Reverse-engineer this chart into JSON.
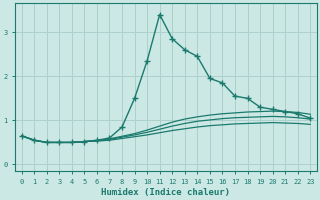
{
  "xlabel": "Humidex (Indice chaleur)",
  "background_color": "#cce8e4",
  "grid_color": "#aed0cc",
  "line_color": "#1a7a6e",
  "xlim": [
    -0.5,
    23.5
  ],
  "ylim": [
    -0.15,
    3.65
  ],
  "xticks": [
    0,
    1,
    2,
    3,
    4,
    5,
    6,
    7,
    8,
    9,
    10,
    11,
    12,
    13,
    14,
    15,
    16,
    17,
    18,
    19,
    20,
    21,
    22,
    23
  ],
  "yticks": [
    0,
    1,
    2,
    3
  ],
  "series_main": {
    "x": [
      0,
      1,
      2,
      3,
      4,
      5,
      6,
      7,
      8,
      9,
      10,
      11,
      12,
      13,
      14,
      15,
      16,
      17,
      18,
      19,
      20,
      21,
      22,
      23
    ],
    "y": [
      0.65,
      0.55,
      0.5,
      0.5,
      0.5,
      0.52,
      0.55,
      0.6,
      0.85,
      1.5,
      2.35,
      3.4,
      2.85,
      2.6,
      2.45,
      1.95,
      1.85,
      1.55,
      1.5,
      1.3,
      1.25,
      1.2,
      1.15,
      1.05
    ]
  },
  "series_smooth": [
    [
      0.65,
      0.55,
      0.5,
      0.5,
      0.5,
      0.52,
      0.54,
      0.58,
      0.64,
      0.7,
      0.78,
      0.87,
      0.96,
      1.03,
      1.08,
      1.12,
      1.15,
      1.17,
      1.19,
      1.2,
      1.21,
      1.2,
      1.18,
      1.14
    ],
    [
      0.65,
      0.55,
      0.5,
      0.5,
      0.5,
      0.52,
      0.54,
      0.57,
      0.62,
      0.67,
      0.73,
      0.8,
      0.87,
      0.93,
      0.98,
      1.01,
      1.04,
      1.06,
      1.07,
      1.08,
      1.09,
      1.08,
      1.06,
      1.03
    ],
    [
      0.65,
      0.55,
      0.5,
      0.5,
      0.5,
      0.52,
      0.53,
      0.55,
      0.59,
      0.63,
      0.67,
      0.72,
      0.77,
      0.81,
      0.85,
      0.88,
      0.9,
      0.92,
      0.93,
      0.94,
      0.95,
      0.94,
      0.93,
      0.91
    ]
  ]
}
